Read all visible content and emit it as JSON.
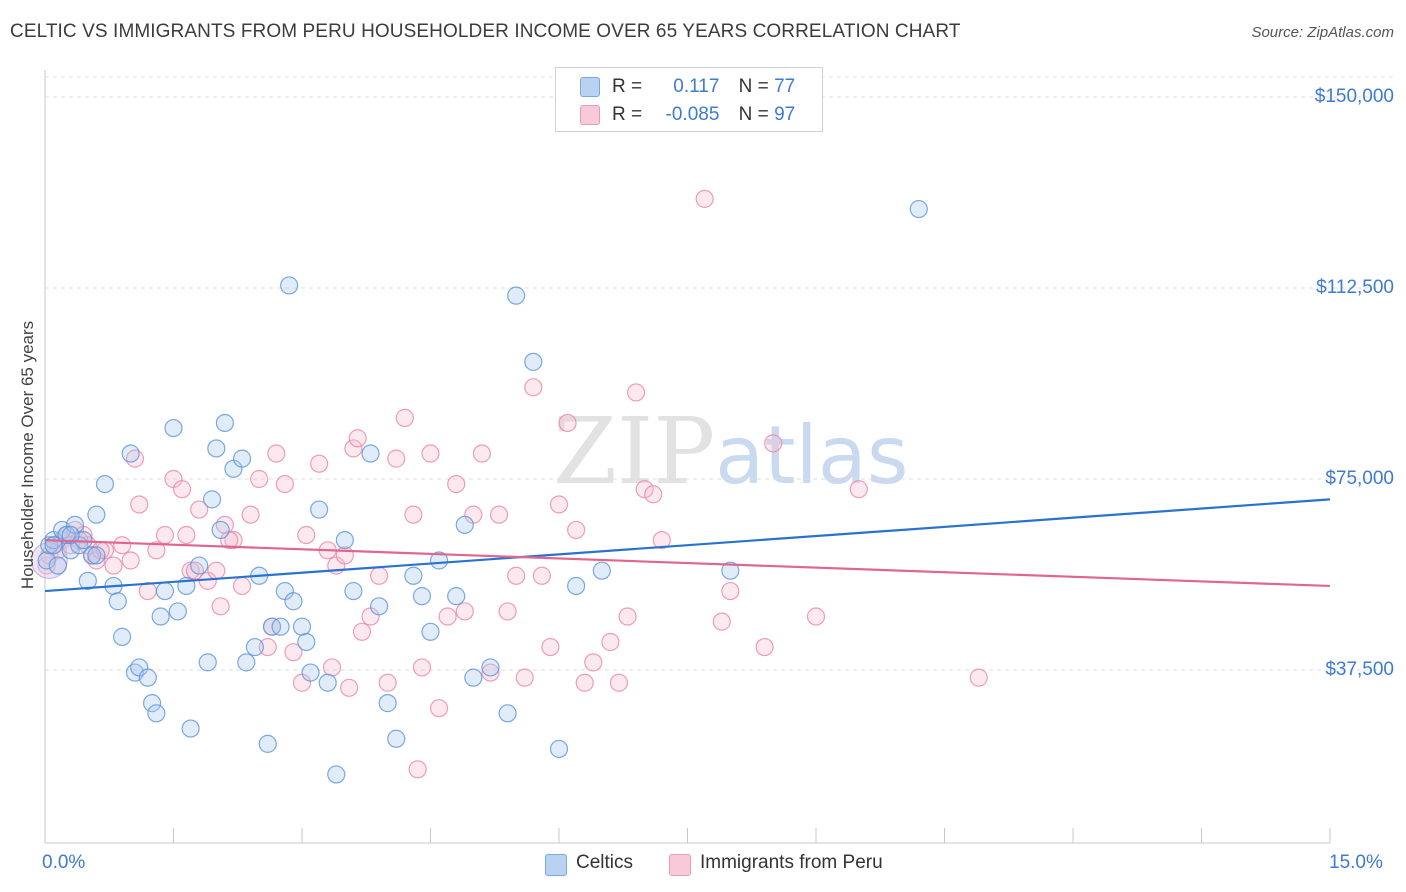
{
  "title": "CELTIC VS IMMIGRANTS FROM PERU HOUSEHOLDER INCOME OVER 65 YEARS CORRELATION CHART",
  "source": "Source: ZipAtlas.com",
  "watermark": {
    "zip": "ZIP",
    "atlas": "atlas"
  },
  "colors": {
    "celtic": "#5b93d9",
    "peru": "#e887a8",
    "celtic_line": "#2a72d0",
    "peru_line": "#e0668f",
    "tick_label": "#3d7bd1"
  },
  "legend": {
    "rows": [
      {
        "r_label": "R =",
        "r_value": "0.117",
        "n_label": "N =",
        "n_value": "77"
      },
      {
        "r_label": "R =",
        "r_value": "-0.085",
        "n_label": "N =",
        "n_value": "97"
      }
    ]
  },
  "bottom_legend": [
    "Celtics",
    "Immigrants from Peru"
  ],
  "chart_data": {
    "type": "scatter",
    "title": "CELTIC VS IMMIGRANTS FROM PERU HOUSEHOLDER INCOME OVER 65 YEARS CORRELATION CHART",
    "xlabel": "",
    "ylabel": "Householder Income Over 65 years",
    "xlim": [
      0,
      15
    ],
    "ylim": [
      7500,
      157500
    ],
    "x_tick_labels": [
      "0.0%",
      "15.0%"
    ],
    "y_ticks": [
      37500,
      75000,
      112500,
      150000
    ],
    "y_tick_labels": [
      "$37,500",
      "$75,000",
      "$112,500",
      "$150,000"
    ],
    "grid": "horizontal dashed",
    "legend_position": "top-center",
    "series": [
      {
        "name": "Celtics",
        "r": 0.117,
        "n": 77,
        "trend": [
          [
            0,
            53000
          ],
          [
            15,
            71000
          ]
        ],
        "points": [
          [
            0.02,
            59000
          ],
          [
            0.05,
            62000
          ],
          [
            0.1,
            63000
          ],
          [
            0.15,
            58000
          ],
          [
            0.2,
            65000
          ],
          [
            0.25,
            64000
          ],
          [
            0.3,
            61000
          ],
          [
            0.35,
            66000
          ],
          [
            0.4,
            62000
          ],
          [
            0.45,
            63000
          ],
          [
            0.5,
            55000
          ],
          [
            0.55,
            60000
          ],
          [
            0.6,
            68000
          ],
          [
            0.7,
            74000
          ],
          [
            0.8,
            54000
          ],
          [
            0.85,
            51000
          ],
          [
            0.9,
            44000
          ],
          [
            1.0,
            80000
          ],
          [
            1.05,
            37000
          ],
          [
            1.1,
            38000
          ],
          [
            1.2,
            36000
          ],
          [
            1.25,
            31000
          ],
          [
            1.3,
            29000
          ],
          [
            1.35,
            48000
          ],
          [
            1.4,
            53000
          ],
          [
            1.5,
            85000
          ],
          [
            1.55,
            49000
          ],
          [
            1.65,
            54000
          ],
          [
            1.7,
            26000
          ],
          [
            1.8,
            58000
          ],
          [
            1.9,
            39000
          ],
          [
            1.95,
            71000
          ],
          [
            2.0,
            81000
          ],
          [
            2.05,
            65000
          ],
          [
            2.1,
            86000
          ],
          [
            2.2,
            77000
          ],
          [
            2.3,
            79000
          ],
          [
            2.35,
            39000
          ],
          [
            2.45,
            42000
          ],
          [
            2.5,
            56000
          ],
          [
            2.6,
            23000
          ],
          [
            2.65,
            46000
          ],
          [
            2.75,
            46000
          ],
          [
            2.8,
            53000
          ],
          [
            2.85,
            113000
          ],
          [
            2.9,
            51000
          ],
          [
            3.0,
            46000
          ],
          [
            3.05,
            43000
          ],
          [
            3.1,
            37000
          ],
          [
            3.2,
            69000
          ],
          [
            3.3,
            35000
          ],
          [
            3.4,
            17000
          ],
          [
            3.5,
            63000
          ],
          [
            3.6,
            53000
          ],
          [
            3.8,
            80000
          ],
          [
            3.9,
            50000
          ],
          [
            4.0,
            31000
          ],
          [
            4.1,
            24000
          ],
          [
            4.3,
            56000
          ],
          [
            4.4,
            52000
          ],
          [
            4.5,
            45000
          ],
          [
            4.6,
            59000
          ],
          [
            4.8,
            52000
          ],
          [
            4.9,
            66000
          ],
          [
            5.0,
            36000
          ],
          [
            5.2,
            38000
          ],
          [
            5.4,
            29000
          ],
          [
            5.5,
            111000
          ],
          [
            5.7,
            98000
          ],
          [
            6.0,
            22000
          ],
          [
            6.2,
            54000
          ],
          [
            6.5,
            57000
          ],
          [
            8.0,
            57000
          ],
          [
            10.2,
            128000
          ],
          [
            0.6,
            60000
          ],
          [
            0.3,
            64000
          ],
          [
            0.1,
            62000
          ]
        ]
      },
      {
        "name": "Immigrants from Peru",
        "r": -0.085,
        "n": 97,
        "trend": [
          [
            0,
            63000
          ],
          [
            15,
            54000
          ]
        ],
        "points": [
          [
            0.02,
            58000
          ],
          [
            0.05,
            60000
          ],
          [
            0.1,
            62000
          ],
          [
            0.15,
            61000
          ],
          [
            0.2,
            63000
          ],
          [
            0.25,
            64000
          ],
          [
            0.3,
            62000
          ],
          [
            0.35,
            65000
          ],
          [
            0.45,
            64000
          ],
          [
            0.5,
            62000
          ],
          [
            0.55,
            60000
          ],
          [
            0.6,
            59000
          ],
          [
            0.7,
            61000
          ],
          [
            0.8,
            58000
          ],
          [
            0.9,
            62000
          ],
          [
            1.0,
            59000
          ],
          [
            1.05,
            79000
          ],
          [
            1.1,
            70000
          ],
          [
            1.2,
            53000
          ],
          [
            1.3,
            61000
          ],
          [
            1.4,
            64000
          ],
          [
            1.5,
            75000
          ],
          [
            1.6,
            73000
          ],
          [
            1.65,
            64000
          ],
          [
            1.7,
            57000
          ],
          [
            1.8,
            69000
          ],
          [
            1.9,
            55000
          ],
          [
            2.0,
            57000
          ],
          [
            2.05,
            50000
          ],
          [
            2.1,
            66000
          ],
          [
            2.2,
            63000
          ],
          [
            2.3,
            54000
          ],
          [
            2.4,
            68000
          ],
          [
            2.5,
            75000
          ],
          [
            2.6,
            42000
          ],
          [
            2.65,
            46000
          ],
          [
            2.7,
            80000
          ],
          [
            2.8,
            74000
          ],
          [
            2.9,
            41000
          ],
          [
            3.0,
            35000
          ],
          [
            3.05,
            64000
          ],
          [
            3.2,
            78000
          ],
          [
            3.3,
            61000
          ],
          [
            3.35,
            38000
          ],
          [
            3.4,
            58000
          ],
          [
            3.5,
            60000
          ],
          [
            3.6,
            81000
          ],
          [
            3.65,
            83000
          ],
          [
            3.7,
            45000
          ],
          [
            3.8,
            48000
          ],
          [
            3.9,
            56000
          ],
          [
            4.0,
            35000
          ],
          [
            4.1,
            79000
          ],
          [
            4.2,
            87000
          ],
          [
            4.3,
            68000
          ],
          [
            4.4,
            38000
          ],
          [
            4.5,
            80000
          ],
          [
            4.6,
            30000
          ],
          [
            4.7,
            48000
          ],
          [
            4.8,
            74000
          ],
          [
            4.9,
            49000
          ],
          [
            5.0,
            68000
          ],
          [
            5.1,
            80000
          ],
          [
            5.2,
            37000
          ],
          [
            5.3,
            68000
          ],
          [
            5.4,
            49000
          ],
          [
            5.5,
            56000
          ],
          [
            5.6,
            36000
          ],
          [
            5.7,
            93000
          ],
          [
            5.8,
            56000
          ],
          [
            5.9,
            42000
          ],
          [
            6.0,
            70000
          ],
          [
            6.1,
            86000
          ],
          [
            6.2,
            65000
          ],
          [
            6.3,
            35000
          ],
          [
            6.4,
            39000
          ],
          [
            6.6,
            43000
          ],
          [
            6.7,
            35000
          ],
          [
            6.8,
            48000
          ],
          [
            6.9,
            92000
          ],
          [
            7.0,
            73000
          ],
          [
            7.1,
            72000
          ],
          [
            7.2,
            63000
          ],
          [
            7.7,
            130000
          ],
          [
            7.9,
            47000
          ],
          [
            8.0,
            53000
          ],
          [
            8.4,
            42000
          ],
          [
            8.5,
            82000
          ],
          [
            9.0,
            48000
          ],
          [
            9.5,
            73000
          ],
          [
            10.9,
            36000
          ],
          [
            4.35,
            18000
          ],
          [
            3.55,
            34000
          ],
          [
            2.15,
            63000
          ],
          [
            1.75,
            57000
          ],
          [
            0.65,
            61000
          ],
          [
            0.4,
            63000
          ]
        ]
      }
    ]
  }
}
